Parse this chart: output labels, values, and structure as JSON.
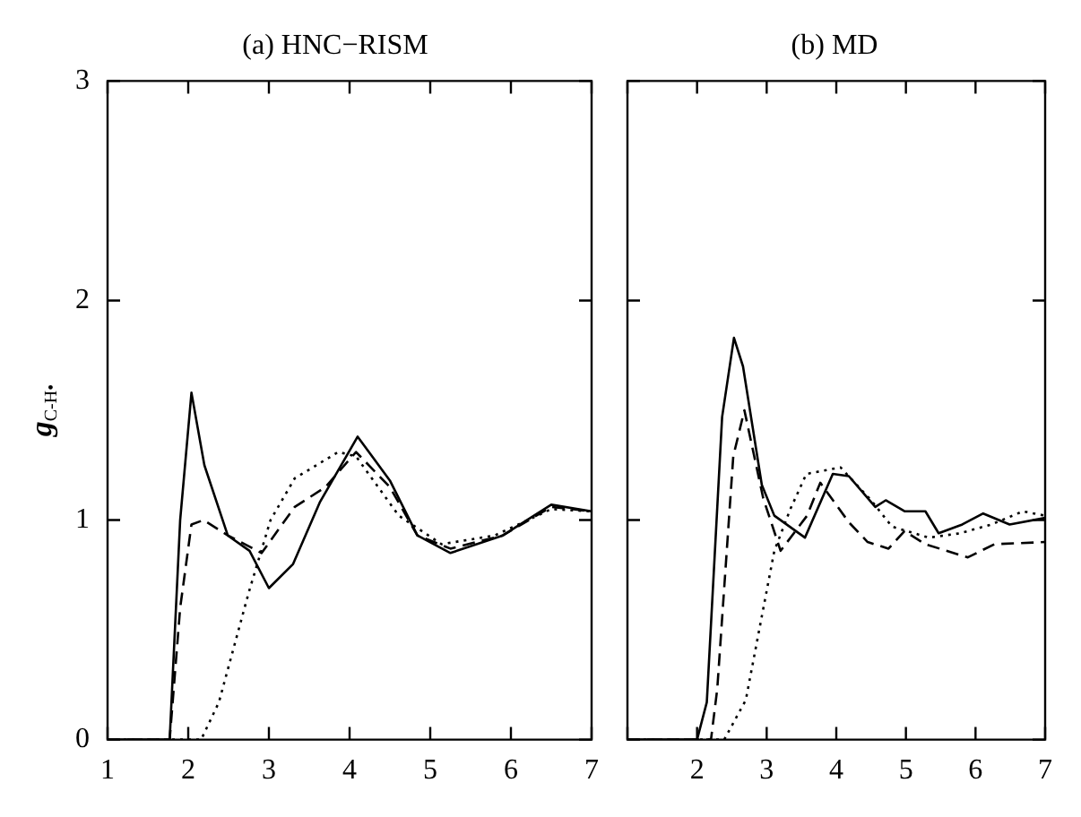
{
  "chart_data": [
    {
      "type": "line",
      "title": "(a) HNC−RISM",
      "ylabel": "g$_{C-H•}$",
      "xlim": [
        1,
        7
      ],
      "xticks": [
        1,
        2,
        3,
        4,
        5,
        6,
        7
      ],
      "ylim": [
        0,
        3
      ],
      "yticks": [
        0,
        1,
        2,
        3
      ],
      "grid": false,
      "legend": false,
      "marker": "none",
      "series": [
        {
          "color": "#000000",
          "line_style": "solid",
          "x": [
            1,
            1.77,
            1.9,
            2.04,
            2.2,
            2.49,
            2.76,
            3.0,
            3.3,
            3.63,
            4.1,
            4.5,
            4.84,
            5.25,
            5.9,
            6.5,
            7
          ],
          "values": [
            0,
            0,
            1.0,
            1.58,
            1.25,
            0.93,
            0.86,
            0.69,
            0.8,
            1.08,
            1.38,
            1.18,
            0.93,
            0.85,
            0.93,
            1.07,
            1.04
          ]
        },
        {
          "color": "#000000",
          "line_style": "dashed",
          "x": [
            1,
            1.77,
            1.9,
            2.04,
            2.19,
            2.49,
            2.91,
            3.32,
            3.7,
            4.08,
            4.5,
            4.84,
            5.25,
            5.9,
            6.5,
            7
          ],
          "values": [
            0,
            0,
            0.6,
            0.98,
            1.0,
            0.93,
            0.85,
            1.06,
            1.15,
            1.31,
            1.15,
            0.93,
            0.87,
            0.93,
            1.06,
            1.04
          ]
        },
        {
          "color": "#000000",
          "line_style": "dotted",
          "x": [
            1,
            2.16,
            2.38,
            2.75,
            3.02,
            3.32,
            3.86,
            4.08,
            4.61,
            5.14,
            5.8,
            6.5,
            7
          ],
          "values": [
            0,
            0,
            0.17,
            0.67,
            1.0,
            1.19,
            1.31,
            1.29,
            1.02,
            0.89,
            0.93,
            1.05,
            1.04
          ]
        }
      ]
    },
    {
      "type": "line",
      "title": "(b) MD",
      "xlim": [
        1,
        7
      ],
      "xticks": [
        {
          "value": 1,
          "label": null
        },
        2,
        3,
        4,
        5,
        6,
        7
      ],
      "ylim": [
        0,
        3
      ],
      "yticks": [
        0,
        1,
        2,
        3
      ],
      "tick_labels": "x",
      "grid": false,
      "legend": false,
      "marker": "none",
      "series": [
        {
          "color": "#000000",
          "line_style": "solid",
          "x": [
            1,
            2.0,
            2.14,
            2.36,
            2.53,
            2.66,
            2.93,
            3.11,
            3.55,
            3.95,
            4.18,
            4.56,
            4.71,
            4.98,
            5.28,
            5.47,
            5.81,
            6.11,
            6.49,
            7
          ],
          "values": [
            0,
            0,
            0.17,
            1.47,
            1.83,
            1.7,
            1.16,
            1.02,
            0.92,
            1.21,
            1.2,
            1.06,
            1.09,
            1.04,
            1.04,
            0.94,
            0.98,
            1.03,
            0.98,
            1.01
          ]
        },
        {
          "color": "#000000",
          "line_style": "dashed",
          "x": [
            1,
            2.2,
            2.29,
            2.52,
            2.68,
            2.95,
            3.2,
            3.58,
            3.77,
            4.18,
            4.45,
            4.75,
            4.98,
            5.28,
            5.89,
            6.27,
            7
          ],
          "values": [
            0,
            0,
            0.23,
            1.29,
            1.5,
            1.1,
            0.86,
            1.02,
            1.17,
            0.99,
            0.9,
            0.87,
            0.95,
            0.89,
            0.83,
            0.89,
            0.9
          ]
        },
        {
          "color": "#000000",
          "line_style": "dotted",
          "x": [
            1,
            2.39,
            2.7,
            3.11,
            3.34,
            3.57,
            4.06,
            4.5,
            4.8,
            5.33,
            5.78,
            6.23,
            6.68,
            7
          ],
          "values": [
            0,
            0,
            0.18,
            0.86,
            1.05,
            1.21,
            1.24,
            1.09,
            0.97,
            0.92,
            0.94,
            0.98,
            1.04,
            1.02
          ]
        }
      ]
    }
  ]
}
